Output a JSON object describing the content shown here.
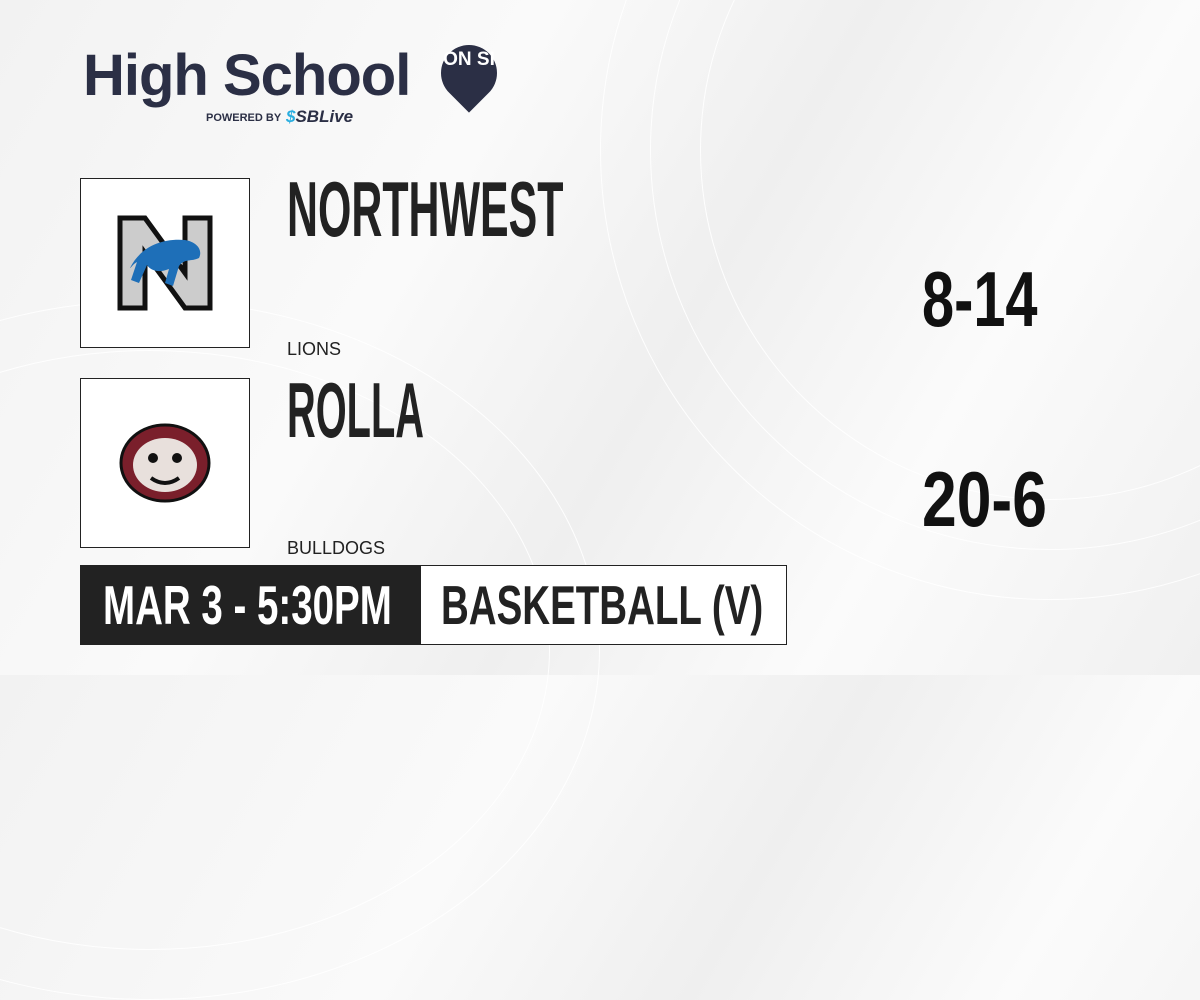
{
  "brand": {
    "title": "High School",
    "pin_text": "ON SI",
    "powered_by": "POWERED BY",
    "partner": "SBLive",
    "accent": "#29aee0",
    "dark": "#2b2f45"
  },
  "teams": [
    {
      "name": "NORTHWEST",
      "mascot": "LIONS",
      "score": "8-14",
      "logo": "lions-n-logo"
    },
    {
      "name": "ROLLA",
      "mascot": "BULLDOGS",
      "score": "20-6",
      "logo": "bulldog-logo"
    }
  ],
  "game": {
    "datetime": "MAR 3 - 5:30PM",
    "sport": "BASKETBALL (V)"
  }
}
